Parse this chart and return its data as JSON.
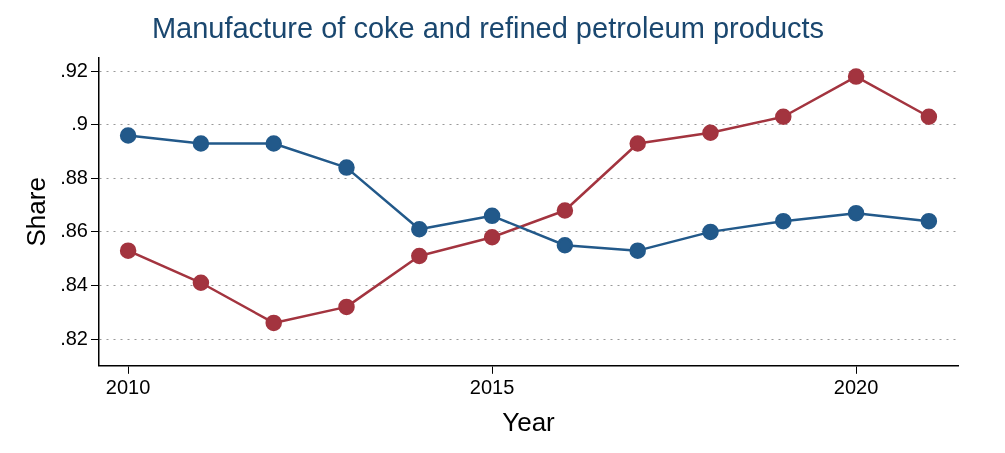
{
  "chart_data": {
    "type": "line",
    "title": "Manufacture of coke and refined petroleum products",
    "xlabel": "Year",
    "ylabel": "Share",
    "x": [
      2010,
      2011,
      2012,
      2013,
      2014,
      2015,
      2016,
      2017,
      2018,
      2019,
      2020,
      2021
    ],
    "series": [
      {
        "color": "#22598a",
        "values": [
          0.896,
          0.893,
          0.893,
          0.884,
          0.861,
          0.866,
          0.855,
          0.853,
          0.86,
          0.864,
          0.867,
          0.864
        ]
      },
      {
        "color": "#a3343f",
        "values": [
          0.853,
          0.841,
          0.826,
          0.832,
          0.851,
          0.858,
          0.868,
          0.893,
          0.897,
          0.903,
          0.918,
          0.903
        ]
      }
    ],
    "xlim": [
      2009.6,
      2021.4
    ],
    "xticks": [
      2010,
      2015,
      2020
    ],
    "ylim": [
      0.81,
      0.925
    ],
    "yticks": [
      {
        "value": 0.82,
        "label": ".82"
      },
      {
        "value": 0.84,
        "label": ".84"
      },
      {
        "value": 0.86,
        "label": ".86"
      },
      {
        "value": 0.88,
        "label": ".88"
      },
      {
        "value": 0.9,
        "label": ".9"
      },
      {
        "value": 0.92,
        "label": ".92"
      }
    ],
    "grid": "y",
    "marker": "circle",
    "legend": false
  }
}
